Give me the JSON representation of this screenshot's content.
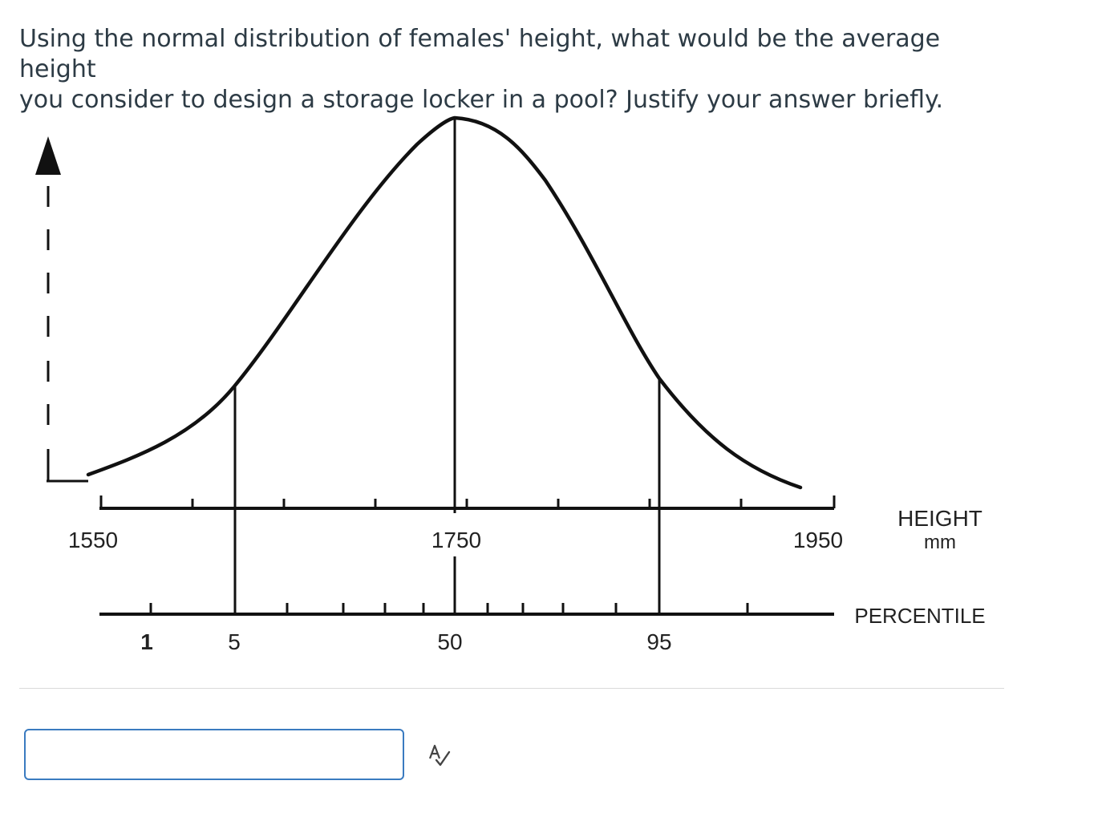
{
  "question": {
    "line1": "Using the normal distribution of females' height, what would be the average height",
    "line2": "you consider to design a storage locker in a pool? Justify your answer briefly."
  },
  "chart_data": {
    "type": "line",
    "description_axes": {
      "height_axis": {
        "ticks": [
          "1550",
          "1750",
          "1950"
        ],
        "label_line1": "HEIGHT",
        "label_line2": "mm",
        "range": [
          1550,
          1950
        ]
      },
      "percentile_axis": {
        "ticks": [
          "1",
          "5",
          "50",
          "95"
        ],
        "label": "PERCENTILE"
      }
    },
    "percentile_markers": [
      {
        "percentile": "5",
        "height": 1620
      },
      {
        "percentile": "50",
        "height": 1750
      },
      {
        "percentile": "95",
        "height": 1870
      }
    ]
  },
  "answer_box": {
    "value": "",
    "placeholder": ""
  },
  "icons": {
    "spellcheck": "spellcheck-icon",
    "y_axis_arrow": "arrow-up-icon"
  }
}
